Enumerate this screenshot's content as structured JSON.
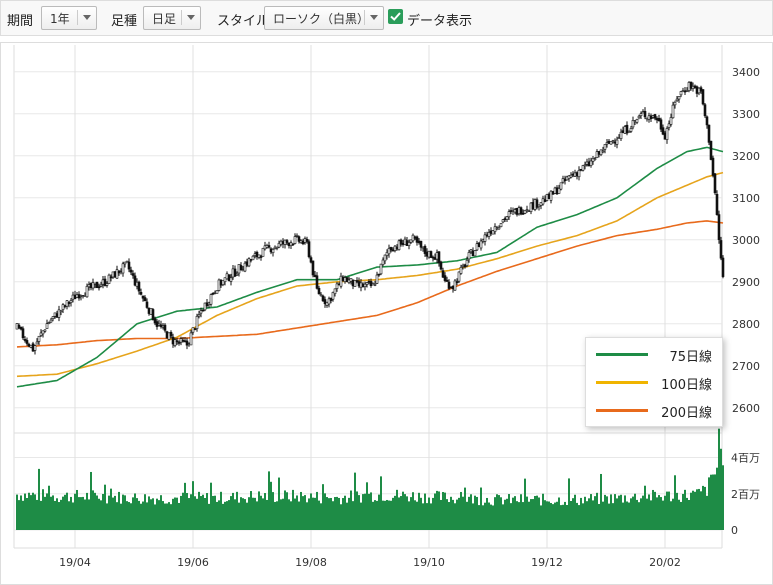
{
  "toolbar": {
    "period_label": "期間",
    "period_value": "1年",
    "footstep_label": "足種",
    "footstep_value": "日足",
    "style_label": "スタイル",
    "style_value": "ローソク（白黒）",
    "show_data_label": "データ表示",
    "show_data_checked": true
  },
  "legend": {
    "ma75": "75日線",
    "ma100": "100日線",
    "ma200": "200日線"
  },
  "colors": {
    "ma75": "#1e8c46",
    "ma100": "#e6a41c",
    "ma200": "#e86a1c",
    "volume": "#1e8c46",
    "candle": "#111111"
  },
  "chart_data": {
    "type": "candlestick",
    "x_tick_labels": [
      "19/04",
      "19/06",
      "19/08",
      "19/10",
      "19/12",
      "20/02"
    ],
    "price_axis": {
      "ylim": [
        2540,
        3440
      ],
      "ticks": [
        3400,
        3300,
        3200,
        3100,
        3000,
        2900,
        2800,
        2700,
        2600
      ]
    },
    "volume_axis": {
      "ylim": [
        0,
        4.8
      ],
      "unit": "百万",
      "ticks": [
        {
          "v": 4,
          "label": "4百万"
        },
        {
          "v": 2,
          "label": "2百万"
        },
        {
          "v": 0,
          "label": "0"
        }
      ]
    },
    "close_anchors": [
      [
        0,
        2790
      ],
      [
        8,
        2740
      ],
      [
        15,
        2800
      ],
      [
        30,
        2870
      ],
      [
        44,
        2900
      ],
      [
        55,
        2940
      ],
      [
        62,
        2870
      ],
      [
        70,
        2800
      ],
      [
        78,
        2760
      ],
      [
        85,
        2750
      ],
      [
        92,
        2830
      ],
      [
        100,
        2890
      ],
      [
        108,
        2920
      ],
      [
        116,
        2950
      ],
      [
        124,
        2975
      ],
      [
        132,
        2990
      ],
      [
        140,
        3000
      ],
      [
        145,
        2990
      ],
      [
        150,
        2880
      ],
      [
        155,
        2850
      ],
      [
        163,
        2910
      ],
      [
        170,
        2890
      ],
      [
        178,
        2890
      ],
      [
        186,
        2980
      ],
      [
        192,
        2990
      ],
      [
        198,
        3000
      ],
      [
        204,
        2970
      ],
      [
        210,
        2960
      ],
      [
        214,
        2900
      ],
      [
        218,
        2890
      ],
      [
        226,
        2960
      ],
      [
        236,
        3020
      ],
      [
        246,
        3060
      ],
      [
        256,
        3080
      ],
      [
        266,
        3100
      ],
      [
        276,
        3150
      ],
      [
        286,
        3180
      ],
      [
        296,
        3230
      ],
      [
        304,
        3260
      ],
      [
        313,
        3300
      ],
      [
        320,
        3290
      ],
      [
        324,
        3250
      ],
      [
        330,
        3340
      ],
      [
        336,
        3370
      ],
      [
        342,
        3350
      ],
      [
        346,
        3240
      ],
      [
        349,
        3110
      ],
      [
        351,
        3000
      ],
      [
        353,
        2910
      ]
    ],
    "volume_anchors": [
      [
        0,
        2.0
      ],
      [
        20,
        1.9
      ],
      [
        40,
        1.9
      ],
      [
        60,
        1.8
      ],
      [
        80,
        1.8
      ],
      [
        100,
        1.8
      ],
      [
        120,
        1.9
      ],
      [
        140,
        1.9
      ],
      [
        160,
        1.8
      ],
      [
        180,
        2.0
      ],
      [
        200,
        1.9
      ],
      [
        220,
        1.8
      ],
      [
        240,
        1.7
      ],
      [
        260,
        1.7
      ],
      [
        280,
        1.7
      ],
      [
        300,
        1.8
      ],
      [
        320,
        1.9
      ],
      [
        340,
        2.0
      ],
      [
        345,
        2.3
      ],
      [
        349,
        3.2
      ],
      [
        353,
        4.5
      ]
    ],
    "ma75": [
      [
        0,
        2650
      ],
      [
        20,
        2665
      ],
      [
        40,
        2720
      ],
      [
        60,
        2800
      ],
      [
        80,
        2830
      ],
      [
        100,
        2840
      ],
      [
        120,
        2875
      ],
      [
        140,
        2905
      ],
      [
        160,
        2905
      ],
      [
        180,
        2935
      ],
      [
        200,
        2940
      ],
      [
        220,
        2950
      ],
      [
        240,
        2970
      ],
      [
        260,
        3030
      ],
      [
        280,
        3060
      ],
      [
        300,
        3100
      ],
      [
        320,
        3170
      ],
      [
        335,
        3210
      ],
      [
        345,
        3220
      ],
      [
        353,
        3210
      ]
    ],
    "ma100": [
      [
        0,
        2675
      ],
      [
        20,
        2680
      ],
      [
        40,
        2705
      ],
      [
        60,
        2735
      ],
      [
        80,
        2768
      ],
      [
        100,
        2820
      ],
      [
        120,
        2860
      ],
      [
        140,
        2890
      ],
      [
        160,
        2900
      ],
      [
        180,
        2905
      ],
      [
        200,
        2915
      ],
      [
        220,
        2930
      ],
      [
        240,
        2955
      ],
      [
        260,
        2985
      ],
      [
        280,
        3010
      ],
      [
        300,
        3045
      ],
      [
        320,
        3100
      ],
      [
        335,
        3130
      ],
      [
        345,
        3150
      ],
      [
        353,
        3160
      ]
    ],
    "ma200": [
      [
        0,
        2745
      ],
      [
        20,
        2750
      ],
      [
        40,
        2760
      ],
      [
        60,
        2765
      ],
      [
        80,
        2765
      ],
      [
        100,
        2770
      ],
      [
        120,
        2775
      ],
      [
        140,
        2790
      ],
      [
        160,
        2805
      ],
      [
        180,
        2820
      ],
      [
        200,
        2850
      ],
      [
        220,
        2890
      ],
      [
        240,
        2925
      ],
      [
        260,
        2955
      ],
      [
        280,
        2985
      ],
      [
        300,
        3010
      ],
      [
        320,
        3025
      ],
      [
        335,
        3040
      ],
      [
        345,
        3045
      ],
      [
        353,
        3040
      ]
    ]
  }
}
